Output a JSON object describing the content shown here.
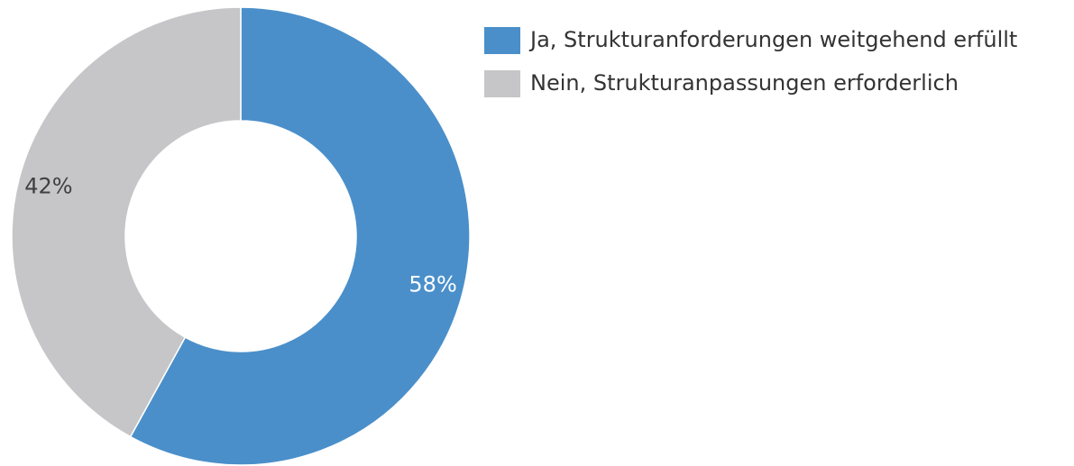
{
  "chart_data": {
    "type": "donut",
    "categories": [
      "Ja, Strukturanforderungen weitgehend erfüllt",
      "Nein, Strukturanpassungen erforderlich"
    ],
    "values": [
      58,
      42
    ],
    "value_labels": [
      "58%",
      "42%"
    ],
    "colors": [
      "#4a8fca",
      "#c6c6c8"
    ],
    "label_colors": [
      "#ffffff",
      "#404040"
    ],
    "legend": "top-right"
  }
}
